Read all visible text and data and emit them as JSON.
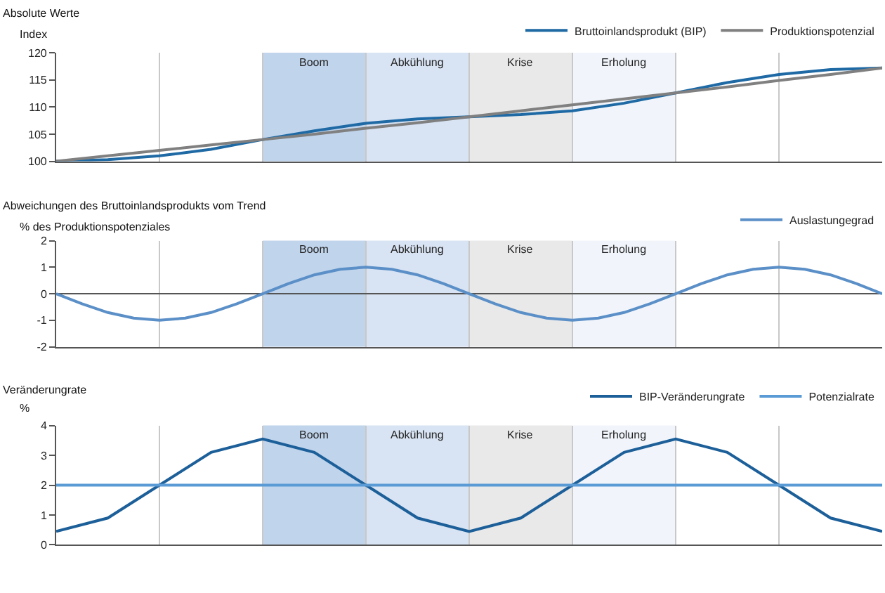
{
  "chart_data": [
    {
      "type": "line",
      "title": "Absolute Werte",
      "ylabel": "Index",
      "categories": [
        null,
        null,
        null,
        null,
        null,
        null,
        null,
        null,
        null,
        null,
        null,
        null,
        null,
        null,
        null,
        null,
        null
      ],
      "series": [
        {
          "name": "Bruttoinlandsprodukt (BIP)",
          "color": "#1f6aa5",
          "values": [
            100,
            100.3,
            101,
            102.2,
            104,
            105.6,
            107,
            107.8,
            108.2,
            108.6,
            109.3,
            110.7,
            112.6,
            114.5,
            116,
            116.9,
            117.2
          ]
        },
        {
          "name": "Produktionspotenzial",
          "color": "#808080",
          "values": [
            100,
            101,
            102,
            103,
            104,
            105,
            106.1,
            107.1,
            108.2,
            109.3,
            110.4,
            111.5,
            112.6,
            113.7,
            114.9,
            116,
            117.2
          ]
        }
      ],
      "ylim": [
        100,
        120
      ],
      "yticks": [
        100,
        105,
        110,
        115,
        120
      ],
      "tick_labels": "y",
      "grid": "x",
      "legend": "top right",
      "annotations": [
        "Boom",
        "Abkühlung",
        "Krise",
        "Erholung"
      ]
    },
    {
      "type": "line",
      "title": "Abweichungen des Bruttoinlandsprodukts vom Trend",
      "ylabel": "% des Produktionspotenziales",
      "categories": [
        null,
        null,
        null,
        null,
        null,
        null,
        null,
        null,
        null,
        null,
        null,
        null,
        null,
        null,
        null,
        null,
        null,
        null,
        null,
        null,
        null,
        null,
        null,
        null,
        null,
        null,
        null,
        null,
        null,
        null,
        null,
        null,
        null
      ],
      "series": [
        {
          "name": "Auslastungegrad",
          "color": "#5b8fc7",
          "values": [
            0,
            -0.38,
            -0.71,
            -0.92,
            -1,
            -0.92,
            -0.71,
            -0.38,
            0,
            0.38,
            0.71,
            0.92,
            1,
            0.92,
            0.71,
            0.38,
            0,
            -0.38,
            -0.71,
            -0.92,
            -1,
            -0.92,
            -0.71,
            -0.38,
            0,
            0.38,
            0.71,
            0.92,
            1,
            0.92,
            0.71,
            0.38,
            0
          ]
        }
      ],
      "ylim": [
        -2,
        2
      ],
      "yticks": [
        -2,
        -1,
        0,
        1,
        2
      ],
      "tick_labels": "y",
      "grid": "x",
      "legend": "top right",
      "annotations": [
        "Boom",
        "Abkühlung",
        "Krise",
        "Erholung"
      ]
    },
    {
      "type": "line",
      "title": "Veränderungrate",
      "ylabel": "%",
      "categories": [
        null,
        null,
        null,
        null,
        null,
        null,
        null,
        null,
        null,
        null,
        null,
        null,
        null,
        null,
        null,
        null,
        null
      ],
      "series": [
        {
          "name": "BIP-Veränderungrate",
          "color": "#1c5f99",
          "values": [
            0.45,
            0.9,
            2,
            3.1,
            3.55,
            3.1,
            2,
            0.9,
            0.45,
            0.9,
            2,
            3.1,
            3.55,
            3.1,
            2,
            0.9,
            0.45
          ]
        },
        {
          "name": "Potenzialrate",
          "color": "#5b9bd5",
          "values": [
            2,
            2,
            2,
            2,
            2,
            2,
            2,
            2,
            2,
            2,
            2,
            2,
            2,
            2,
            2,
            2,
            2
          ]
        }
      ],
      "ylim": [
        0,
        4
      ],
      "yticks": [
        0,
        1,
        2,
        3,
        4
      ],
      "tick_labels": "y",
      "grid": "x",
      "legend": "top right",
      "annotations": [
        "Boom",
        "Abkühlung",
        "Krise",
        "Erholung"
      ]
    }
  ]
}
